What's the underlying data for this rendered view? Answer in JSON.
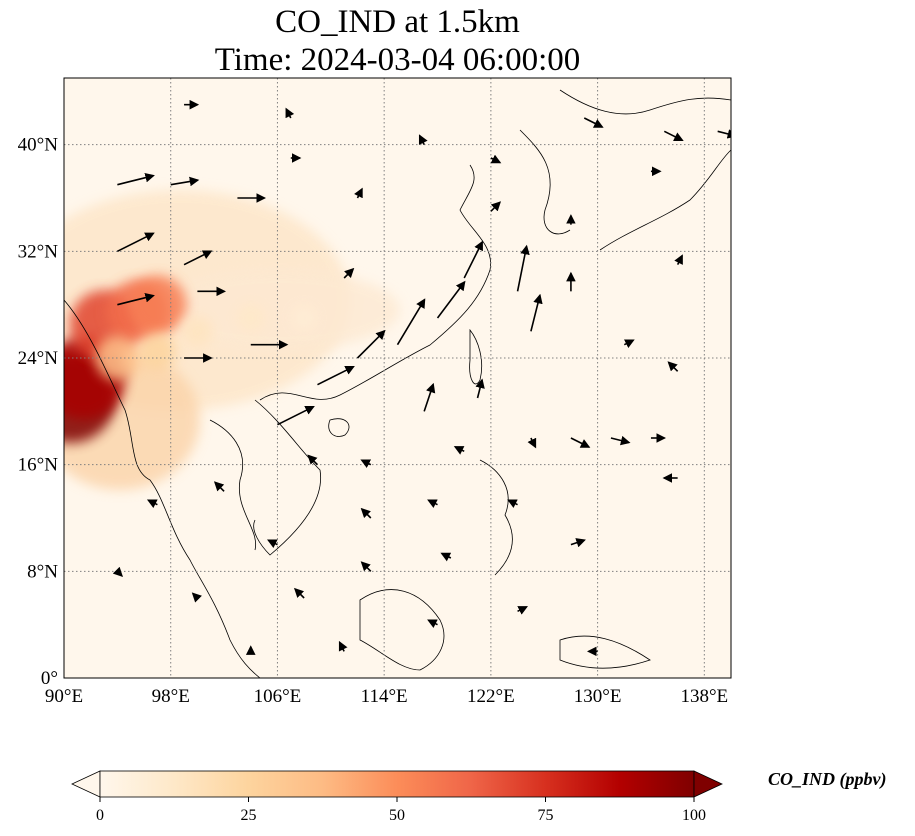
{
  "title": {
    "line1": "CO_IND at 1.5km",
    "line2": "Time: 2024-03-04 06:00:00"
  },
  "map": {
    "lon_range": [
      90,
      140
    ],
    "lat_range": [
      0,
      45
    ],
    "gridline_style": "dotted",
    "colormap": "OrRd",
    "lon_ticks": [
      {
        "value": 90,
        "label": "90°E"
      },
      {
        "value": 98,
        "label": "98°E"
      },
      {
        "value": 106,
        "label": "106°E"
      },
      {
        "value": 114,
        "label": "114°E"
      },
      {
        "value": 122,
        "label": "122°E"
      },
      {
        "value": 130,
        "label": "130°E"
      },
      {
        "value": 138,
        "label": "138°E"
      }
    ],
    "lat_ticks": [
      {
        "value": 0,
        "label": "0°"
      },
      {
        "value": 8,
        "label": "8°N"
      },
      {
        "value": 16,
        "label": "16°N"
      },
      {
        "value": 24,
        "label": "24°N"
      },
      {
        "value": 32,
        "label": "32°N"
      },
      {
        "value": 40,
        "label": "40°N"
      }
    ],
    "co_hotspots": [
      {
        "lon": 90.5,
        "lat": 21.0,
        "value": 100
      },
      {
        "lon": 91.5,
        "lat": 22.5,
        "value": 90
      },
      {
        "lon": 93.0,
        "lat": 26.5,
        "value": 70
      },
      {
        "lon": 95.5,
        "lat": 27.5,
        "value": 60
      },
      {
        "lon": 97.0,
        "lat": 28.0,
        "value": 55
      },
      {
        "lon": 94.0,
        "lat": 24.0,
        "value": 35
      },
      {
        "lon": 97.0,
        "lat": 24.5,
        "value": 25
      },
      {
        "lon": 100.0,
        "lat": 26.0,
        "value": 15
      },
      {
        "lon": 104.0,
        "lat": 27.0,
        "value": 12
      },
      {
        "lon": 108.0,
        "lat": 27.0,
        "value": 8
      }
    ],
    "wind_vectors": [
      {
        "lon": 94,
        "lat": 37,
        "u": 4,
        "v": 1
      },
      {
        "lon": 98,
        "lat": 37,
        "u": 3,
        "v": 0.5
      },
      {
        "lon": 103,
        "lat": 36,
        "u": 3,
        "v": 0
      },
      {
        "lon": 94,
        "lat": 32,
        "u": 4,
        "v": 2
      },
      {
        "lon": 99,
        "lat": 31,
        "u": 3,
        "v": 1.5
      },
      {
        "lon": 94,
        "lat": 28,
        "u": 4,
        "v": 1
      },
      {
        "lon": 100,
        "lat": 29,
        "u": 3,
        "v": 0
      },
      {
        "lon": 104,
        "lat": 25,
        "u": 4,
        "v": 0
      },
      {
        "lon": 99,
        "lat": 24,
        "u": 3,
        "v": 0
      },
      {
        "lon": 109,
        "lat": 22,
        "u": 4,
        "v": 2
      },
      {
        "lon": 106,
        "lat": 19,
        "u": 4,
        "v": 2
      },
      {
        "lon": 112,
        "lat": 24,
        "u": 3,
        "v": 3
      },
      {
        "lon": 115,
        "lat": 25,
        "u": 3,
        "v": 5
      },
      {
        "lon": 118,
        "lat": 27,
        "u": 3,
        "v": 4
      },
      {
        "lon": 120,
        "lat": 30,
        "u": 2,
        "v": 4
      },
      {
        "lon": 124,
        "lat": 29,
        "u": 1,
        "v": 5
      },
      {
        "lon": 125,
        "lat": 26,
        "u": 1,
        "v": 4
      },
      {
        "lon": 117,
        "lat": 20,
        "u": 1,
        "v": 3
      },
      {
        "lon": 121,
        "lat": 21,
        "u": 0.5,
        "v": 2
      },
      {
        "lon": 111,
        "lat": 30,
        "u": 1,
        "v": 1
      },
      {
        "lon": 128,
        "lat": 29,
        "u": 0,
        "v": 2
      },
      {
        "lon": 132,
        "lat": 25,
        "u": 1,
        "v": 0.5
      },
      {
        "lon": 136,
        "lat": 23,
        "u": -1,
        "v": 1
      },
      {
        "lon": 128,
        "lat": 18,
        "u": 2,
        "v": -1
      },
      {
        "lon": 131,
        "lat": 18,
        "u": 2,
        "v": -0.5
      },
      {
        "lon": 134,
        "lat": 18,
        "u": 1.5,
        "v": 0
      },
      {
        "lon": 136,
        "lat": 15,
        "u": -1.5,
        "v": 0
      },
      {
        "lon": 125,
        "lat": 18,
        "u": 0.5,
        "v": -1
      },
      {
        "lon": 120,
        "lat": 17,
        "u": -1,
        "v": 0.5
      },
      {
        "lon": 113,
        "lat": 16,
        "u": -1,
        "v": 0.5
      },
      {
        "lon": 109,
        "lat": 16,
        "u": -1,
        "v": 1
      },
      {
        "lon": 102,
        "lat": 14,
        "u": -1,
        "v": 1
      },
      {
        "lon": 97,
        "lat": 13,
        "u": -1,
        "v": 0.5
      },
      {
        "lon": 106,
        "lat": 10,
        "u": -1,
        "v": 0.5
      },
      {
        "lon": 113,
        "lat": 12,
        "u": -1,
        "v": 1
      },
      {
        "lon": 118,
        "lat": 13,
        "u": -1,
        "v": 0.5
      },
      {
        "lon": 124,
        "lat": 13,
        "u": -1,
        "v": 0.5
      },
      {
        "lon": 128,
        "lat": 10,
        "u": 1.5,
        "v": 0.5
      },
      {
        "lon": 119,
        "lat": 9,
        "u": -1,
        "v": 0.5
      },
      {
        "lon": 113,
        "lat": 8,
        "u": -1,
        "v": 1
      },
      {
        "lon": 108,
        "lat": 6,
        "u": -1,
        "v": 1
      },
      {
        "lon": 100,
        "lat": 6,
        "u": -0.5,
        "v": 0.5
      },
      {
        "lon": 94,
        "lat": 8,
        "u": 0.5,
        "v": -0.5
      },
      {
        "lon": 118,
        "lat": 4,
        "u": -1,
        "v": 0.5
      },
      {
        "lon": 124,
        "lat": 5,
        "u": 1,
        "v": 0.5
      },
      {
        "lon": 130,
        "lat": 2,
        "u": -1,
        "v": 0
      },
      {
        "lon": 111,
        "lat": 2,
        "u": -0.5,
        "v": 1
      },
      {
        "lon": 104,
        "lat": 2,
        "u": 0,
        "v": 0.5
      },
      {
        "lon": 128,
        "lat": 34,
        "u": 0,
        "v": 1
      },
      {
        "lon": 134,
        "lat": 38,
        "u": 1,
        "v": 0
      },
      {
        "lon": 129,
        "lat": 42,
        "u": 2,
        "v": -1
      },
      {
        "lon": 135,
        "lat": 41,
        "u": 2,
        "v": -1
      },
      {
        "lon": 139,
        "lat": 41,
        "u": 2,
        "v": -0.5
      },
      {
        "lon": 117,
        "lat": 40,
        "u": -0.5,
        "v": 1
      },
      {
        "lon": 122,
        "lat": 39,
        "u": 1,
        "v": -0.5
      },
      {
        "lon": 112,
        "lat": 36,
        "u": 0.5,
        "v": 1
      },
      {
        "lon": 107,
        "lat": 39,
        "u": 1,
        "v": 0
      },
      {
        "lon": 99,
        "lat": 43,
        "u": 1.5,
        "v": 0
      },
      {
        "lon": 107,
        "lat": 42,
        "u": -0.5,
        "v": 1
      },
      {
        "lon": 136,
        "lat": 31,
        "u": 0.5,
        "v": 1
      },
      {
        "lon": 122,
        "lat": 35,
        "u": 1,
        "v": 1
      }
    ]
  },
  "colorbar": {
    "title": "CO_IND (ppbv)",
    "min": 0,
    "max": 100,
    "extend": "both",
    "ticks": [
      {
        "value": 0,
        "label": "0"
      },
      {
        "value": 25,
        "label": "25"
      },
      {
        "value": 50,
        "label": "50"
      },
      {
        "value": 75,
        "label": "75"
      },
      {
        "value": 100,
        "label": "100"
      }
    ],
    "colors": [
      "#fff7ec",
      "#fee8c8",
      "#fdd49e",
      "#fdbb84",
      "#fc8d59",
      "#ef6548",
      "#d7301f",
      "#b30000",
      "#7f0000"
    ]
  }
}
